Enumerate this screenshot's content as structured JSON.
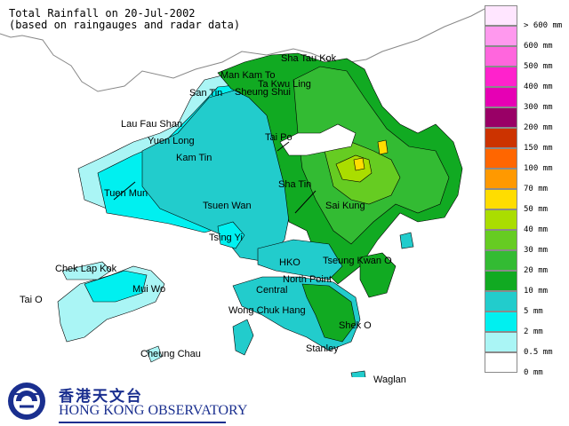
{
  "title": {
    "line1": "Total Rainfall on 20-Jul-2002",
    "line2": "(based on raingauges and radar data)"
  },
  "places": {
    "sha_tau_kok": "Sha Tau Kok",
    "man_kam_to": "Man Kam To",
    "ta_kwu_ling": "Ta Kwu Ling",
    "san_tin": "San Tin",
    "sheung_shui": "Sheung Shui",
    "lau_fau_shan": "Lau Fau Shan",
    "yuen_long": "Yuen Long",
    "tai_po": "Tai Po",
    "kam_tin": "Kam Tin",
    "tuen_mun": "Tuen Mun",
    "sha_tin": "Sha Tin",
    "tsuen_wan": "Tsuen Wan",
    "sai_kung": "Sai Kung",
    "tsing_yi": "Tsing Yi",
    "chek_lap_kok": "Chek Lap Kok",
    "hko": "HKO",
    "tseung_kwan_o": "Tseung Kwan O",
    "north_point": "North Point",
    "mui_wo": "Mui Wo",
    "central": "Central",
    "tai_o": "Tai O",
    "wong_chuk_hang": "Wong Chuk Hang",
    "shek_o": "Shek O",
    "cheung_chau": "Cheung Chau",
    "stanley": "Stanley",
    "waglan": "Waglan"
  },
  "legend": [
    {
      "label": "> 600 mm",
      "color": "#ffe6ff"
    },
    {
      "label": "600 mm",
      "color": "#ff99ee"
    },
    {
      "label": "500 mm",
      "color": "#ff66dd"
    },
    {
      "label": "400 mm",
      "color": "#ff22cc"
    },
    {
      "label": "300 mm",
      "color": "#e600b4"
    },
    {
      "label": "200 mm",
      "color": "#990066"
    },
    {
      "label": "150 mm",
      "color": "#cc3300"
    },
    {
      "label": "100 mm",
      "color": "#ff6600"
    },
    {
      "label": "70 mm",
      "color": "#ff9900"
    },
    {
      "label": "50 mm",
      "color": "#ffdd00"
    },
    {
      "label": "40 mm",
      "color": "#aadd00"
    },
    {
      "label": "30 mm",
      "color": "#66cc22"
    },
    {
      "label": "20 mm",
      "color": "#33bb33"
    },
    {
      "label": "10 mm",
      "color": "#11aa22"
    },
    {
      "label": "5 mm",
      "color": "#22cccc"
    },
    {
      "label": "2 mm",
      "color": "#00f0f0"
    },
    {
      "label": "0.5 mm",
      "color": "#aaf5f5"
    },
    {
      "label": "0 mm",
      "color": "#ffffff"
    }
  ],
  "logo": {
    "chinese": "香港天文台",
    "english": "HONG KONG OBSERVATORY"
  },
  "colors": {
    "land_outline": "#000000",
    "mainland": "#ffffff",
    "brand_blue": "#1a2f8f"
  }
}
